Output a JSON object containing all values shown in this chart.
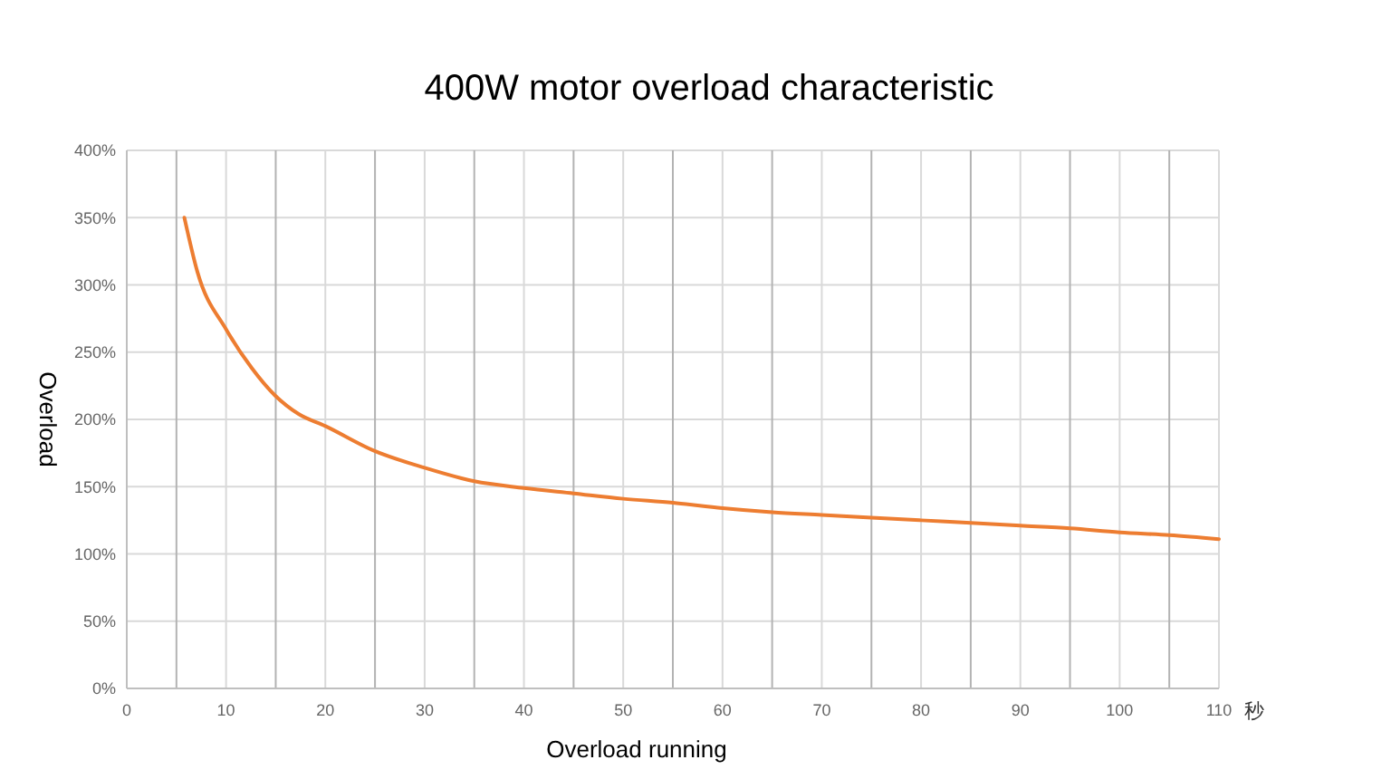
{
  "chart_data": {
    "type": "line",
    "title": "400W motor overload characteristic",
    "xlabel": "Overload running",
    "ylabel": "Overload",
    "annotations": [
      "秒"
    ],
    "x": [
      5.8,
      7.1,
      10,
      12.6,
      14.9,
      17.3,
      20,
      24.8,
      30,
      35,
      40,
      45,
      50,
      55,
      60,
      65,
      70,
      75,
      80,
      85,
      90,
      95,
      100,
      105,
      110
    ],
    "series": [
      {
        "color": "#ed7d31",
        "values": [
          350,
          310,
          267,
          238,
          218,
          204,
          195,
          177,
          164,
          154,
          149,
          145,
          141,
          138,
          134,
          131,
          129,
          127,
          125,
          123,
          121,
          119,
          116,
          114,
          111
        ]
      }
    ],
    "xlim": [
      0,
      110
    ],
    "xticks": [
      0,
      {
        "value": 5,
        "label": null
      },
      10,
      {
        "value": 15,
        "label": null
      },
      20,
      {
        "value": 25,
        "label": null
      },
      30,
      {
        "value": 35,
        "label": null
      },
      40,
      {
        "value": 45,
        "label": null
      },
      50,
      {
        "value": 55,
        "label": null
      },
      60,
      {
        "value": 65,
        "label": null
      },
      70,
      {
        "value": 75,
        "label": null
      },
      80,
      {
        "value": 85,
        "label": null
      },
      90,
      {
        "value": 95,
        "label": null
      },
      100,
      {
        "value": 105,
        "label": null
      },
      110
    ],
    "ylim": [
      0,
      400
    ],
    "yticks": [
      {
        "value": 0,
        "label": "0%"
      },
      {
        "value": 50,
        "label": "50%"
      },
      {
        "value": 100,
        "label": "100%"
      },
      {
        "value": 150,
        "label": "150%"
      },
      {
        "value": 200,
        "label": "200%"
      },
      {
        "value": 250,
        "label": "250%"
      },
      {
        "value": 300,
        "label": "300%"
      },
      {
        "value": 350,
        "label": "350%"
      },
      {
        "value": 400,
        "label": "400%"
      }
    ],
    "grid": true,
    "marker": "none",
    "line_style": "solid"
  }
}
